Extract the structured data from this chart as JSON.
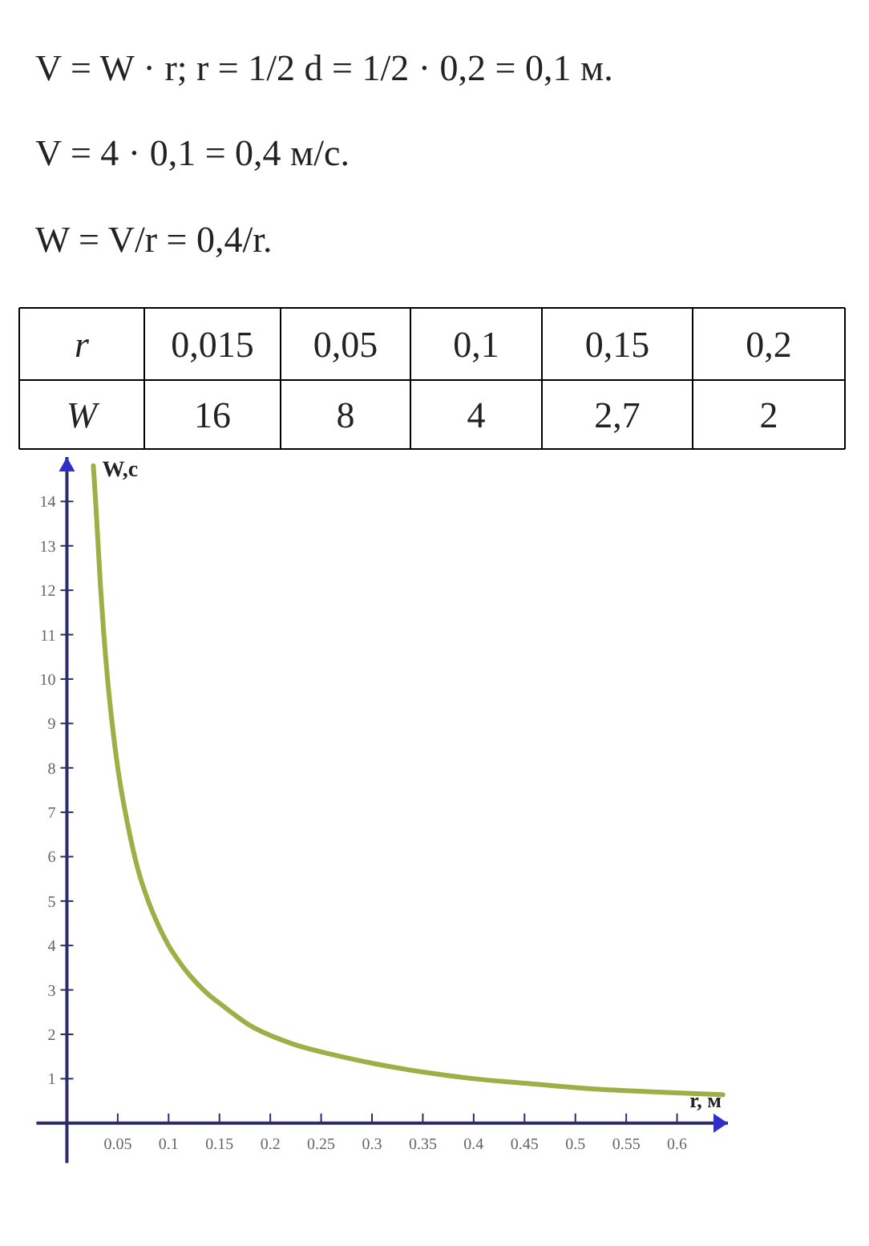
{
  "chart_data": {
    "type": "line",
    "xlabel": "r, м",
    "ylabel": "W,с",
    "annotations": [
      "V = W · r; r = 1/2 d = 1/2 · 0,2 = 0,1 м.",
      "V = 4 · 0,1 = 0,4 м/с.",
      "W = V/r = 0,4/r.",
      "r",
      "0,015",
      "0,05",
      "0,1",
      "0,15",
      "0,2",
      "W",
      "16",
      "8",
      "4",
      "2,7",
      "2"
    ],
    "x": [
      0.026,
      0.028,
      0.03,
      0.033,
      0.036,
      0.04,
      0.045,
      0.05,
      0.06,
      0.07,
      0.08,
      0.09,
      0.1,
      0.11,
      0.12,
      0.13,
      0.14,
      0.15,
      0.18,
      0.22,
      0.26,
      0.3,
      0.35,
      0.4,
      0.45,
      0.5,
      0.55,
      0.6,
      0.645
    ],
    "series": [
      {
        "color": "#9fae45",
        "values": [
          14.8,
          14.1,
          13.3,
          12.1,
          11.1,
          10,
          8.9,
          8,
          6.7,
          5.7,
          5,
          4.45,
          4,
          3.65,
          3.35,
          3.1,
          2.88,
          2.7,
          2.2,
          1.8,
          1.55,
          1.35,
          1.15,
          1.0,
          0.9,
          0.8,
          0.73,
          0.68,
          0.64
        ]
      }
    ],
    "xlim": [
      -0.03,
      0.65
    ],
    "ylim": [
      -0.9,
      15
    ],
    "xticks": [
      0.05,
      0.1,
      0.15,
      0.2,
      0.25,
      0.3,
      0.35,
      0.4,
      0.45,
      0.5,
      0.55,
      0.6
    ],
    "yticks": [
      1,
      2,
      3,
      4,
      5,
      6,
      7,
      8,
      9,
      10,
      11,
      12,
      13,
      14
    ]
  }
}
